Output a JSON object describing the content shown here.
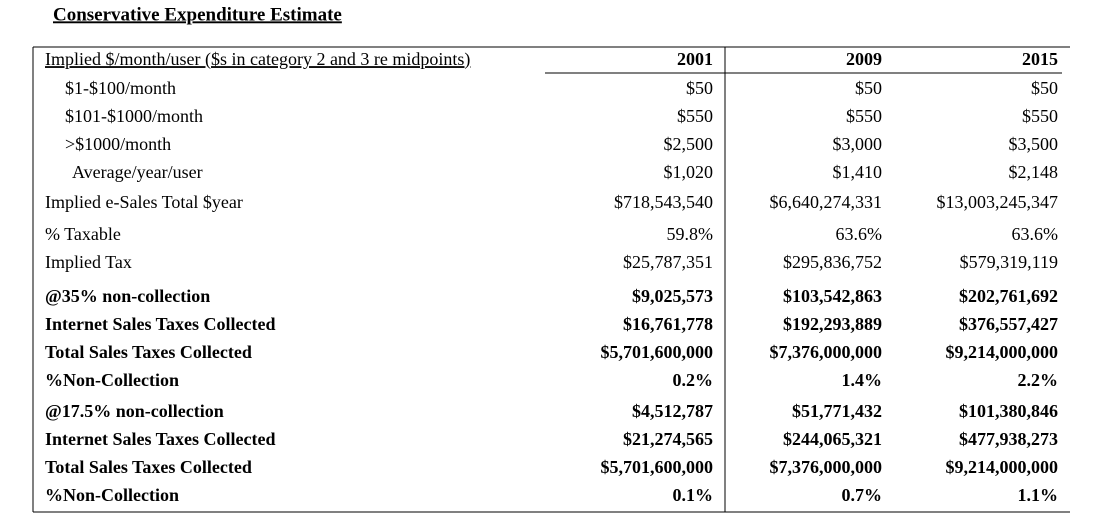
{
  "title": "Conservative Expenditure Estimate",
  "table": {
    "header": [
      "Implied $/month/user ($s in category 2 and 3 re midpoints)",
      "2001",
      "2009",
      "2015"
    ],
    "rows": [
      [
        "$1-$100/month",
        "$50",
        "$50",
        "$50"
      ],
      [
        "$101-$1000/month",
        "$550",
        "$550",
        "$550"
      ],
      [
        ">$1000/month",
        "$2,500",
        "$3,000",
        "$3,500"
      ],
      [
        "Average/year/user",
        "$1,020",
        "$1,410",
        "$2,148"
      ],
      [
        "Implied e-Sales Total $year",
        "$718,543,540",
        "$6,640,274,331",
        "$13,003,245,347"
      ],
      [
        "% Taxable",
        "59.8%",
        "63.6%",
        "63.6%"
      ],
      [
        "Implied Tax",
        "$25,787,351",
        "$295,836,752",
        "$579,319,119"
      ],
      [
        "@35% non-collection",
        "$9,025,573",
        "$103,542,863",
        "$202,761,692"
      ],
      [
        "Internet Sales Taxes Collected",
        "$16,761,778",
        "$192,293,889",
        "$376,557,427"
      ],
      [
        "Total Sales Taxes Collected",
        "$5,701,600,000",
        "$7,376,000,000",
        "$9,214,000,000"
      ],
      [
        "%Non-Collection",
        "0.2%",
        "1.4%",
        "2.2%"
      ],
      [
        "@17.5% non-collection",
        "$4,512,787",
        "$51,771,432",
        "$101,380,846"
      ],
      [
        "Internet Sales Taxes Collected",
        "$21,274,565",
        "$244,065,321",
        "$477,938,273"
      ],
      [
        "Total Sales Taxes Collected",
        "$5,701,600,000",
        "$7,376,000,000",
        "$9,214,000,000"
      ],
      [
        "%Non-Collection",
        "0.1%",
        "0.7%",
        "1.1%"
      ]
    ]
  }
}
